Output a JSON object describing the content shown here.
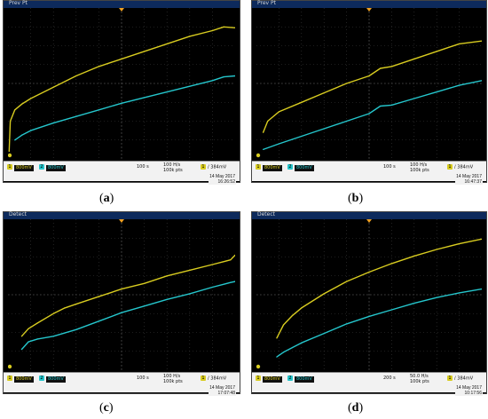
{
  "panels": [
    {
      "id": "a",
      "caption_open": "(",
      "caption_letter": "a",
      "caption_close": ")",
      "mode": "Prev Pt",
      "ch1_scale": "800mV",
      "ch2_scale": "800mV",
      "timebase": "100 s",
      "rate": "100 H/s",
      "points": "100k pts",
      "trigger_level": "384mV",
      "date": "14 May 2017",
      "time": "16:26:52",
      "colors": {
        "ch1": "#d8cc20",
        "ch2": "#25c6cc"
      }
    },
    {
      "id": "b",
      "caption_open": "(",
      "caption_letter": "b",
      "caption_close": ")",
      "mode": "Prev Pt",
      "ch1_scale": "800mV",
      "ch2_scale": "800mV",
      "timebase": "100 s",
      "rate": "100 H/s",
      "points": "100k pts",
      "trigger_level": "384mV",
      "date": "14 May 2017",
      "time": "16:47:37",
      "colors": {
        "ch1": "#d8cc20",
        "ch2": "#25c6cc"
      }
    },
    {
      "id": "c",
      "caption_open": "(",
      "caption_letter": "c",
      "caption_close": ")",
      "mode": "Detect",
      "ch1_scale": "800mV",
      "ch2_scale": "800mV",
      "timebase": "100 s",
      "rate": "100 H/s",
      "points": "100k pts",
      "trigger_level": "384mV",
      "date": "14 May 2017",
      "time": "17:07:48",
      "colors": {
        "ch1": "#d8cc20",
        "ch2": "#25c6cc"
      }
    },
    {
      "id": "d",
      "caption_open": "(",
      "caption_letter": "d",
      "caption_close": ")",
      "mode": "Detect",
      "ch1_scale": "800mV",
      "ch2_scale": "800mV",
      "timebase": "200 s",
      "rate": "50.0 H/s",
      "points": "100k pts",
      "trigger_level": "384mV",
      "date": "14 May 2017",
      "time": "10:17:56",
      "colors": {
        "ch1": "#d8cc20",
        "ch2": "#25c6cc"
      }
    }
  ],
  "chart_data": [
    {
      "type": "line",
      "grid": true,
      "x_divisions": 10,
      "y_divisions": 8,
      "xlim": [
        0,
        10
      ],
      "ylim": [
        -4,
        4
      ],
      "series": [
        {
          "channel": 1,
          "x": [
            0.05,
            0.1,
            0.3,
            0.6,
            1,
            2,
            3,
            4,
            5,
            6,
            7,
            8,
            9,
            9.5,
            10
          ],
          "y": [
            -3.6,
            -2.0,
            -1.4,
            -1.1,
            -0.8,
            -0.2,
            0.4,
            0.9,
            1.3,
            1.7,
            2.1,
            2.5,
            2.8,
            3.0,
            2.95
          ]
        },
        {
          "channel": 2,
          "x": [
            0.3,
            0.6,
            1,
            2,
            3,
            4,
            5,
            6,
            7,
            8,
            9,
            9.5,
            10
          ],
          "y": [
            -3.0,
            -2.75,
            -2.5,
            -2.1,
            -1.75,
            -1.4,
            -1.05,
            -0.75,
            -0.45,
            -0.15,
            0.15,
            0.35,
            0.4
          ]
        }
      ]
    },
    {
      "type": "line",
      "grid": true,
      "x_divisions": 10,
      "y_divisions": 8,
      "xlim": [
        0,
        10
      ],
      "ylim": [
        -4,
        4
      ],
      "series": [
        {
          "channel": 1,
          "x": [
            0.3,
            0.5,
            0.8,
            1,
            2,
            3,
            4,
            5,
            5.5,
            6,
            7,
            8,
            9,
            10
          ],
          "y": [
            -2.6,
            -2.0,
            -1.7,
            -1.5,
            -1.0,
            -0.5,
            0.0,
            0.4,
            0.8,
            0.9,
            1.3,
            1.7,
            2.1,
            2.25
          ]
        },
        {
          "channel": 2,
          "x": [
            0.3,
            1,
            2,
            3,
            4,
            5,
            5.5,
            6,
            7,
            8,
            9,
            10
          ],
          "y": [
            -3.5,
            -3.2,
            -2.8,
            -2.4,
            -2.0,
            -1.6,
            -1.2,
            -1.15,
            -0.8,
            -0.45,
            -0.1,
            0.15
          ]
        }
      ]
    },
    {
      "type": "line",
      "grid": true,
      "x_divisions": 10,
      "y_divisions": 8,
      "xlim": [
        0,
        10
      ],
      "ylim": [
        -4,
        4
      ],
      "series": [
        {
          "channel": 1,
          "x": [
            0.6,
            0.9,
            1.3,
            2,
            2.5,
            3,
            4,
            5,
            6,
            7,
            8,
            9,
            9.8,
            10
          ],
          "y": [
            -2.2,
            -1.8,
            -1.5,
            -1.0,
            -0.7,
            -0.5,
            -0.1,
            0.3,
            0.6,
            1.0,
            1.3,
            1.6,
            1.85,
            2.1
          ]
        },
        {
          "channel": 2,
          "x": [
            0.6,
            0.9,
            1.3,
            2,
            3,
            4,
            5,
            6,
            7,
            8,
            9,
            9.8,
            10
          ],
          "y": [
            -2.9,
            -2.5,
            -2.35,
            -2.2,
            -1.85,
            -1.4,
            -0.95,
            -0.6,
            -0.25,
            0.05,
            0.4,
            0.65,
            0.7
          ]
        }
      ]
    },
    {
      "type": "line",
      "grid": true,
      "x_divisions": 10,
      "y_divisions": 8,
      "xlim": [
        0,
        10
      ],
      "ylim": [
        -4,
        4
      ],
      "series": [
        {
          "channel": 1,
          "x": [
            0.9,
            1.2,
            1.6,
            2,
            3,
            4,
            5,
            6,
            7,
            8,
            9,
            10
          ],
          "y": [
            -2.3,
            -1.6,
            -1.1,
            -0.7,
            0.05,
            0.7,
            1.2,
            1.65,
            2.05,
            2.4,
            2.7,
            2.95
          ]
        },
        {
          "channel": 2,
          "x": [
            0.9,
            1.2,
            1.6,
            2,
            3,
            4,
            5,
            6,
            7,
            8,
            9,
            10
          ],
          "y": [
            -3.3,
            -3.05,
            -2.8,
            -2.55,
            -2.05,
            -1.55,
            -1.15,
            -0.8,
            -0.45,
            -0.15,
            0.1,
            0.3
          ]
        }
      ]
    }
  ]
}
